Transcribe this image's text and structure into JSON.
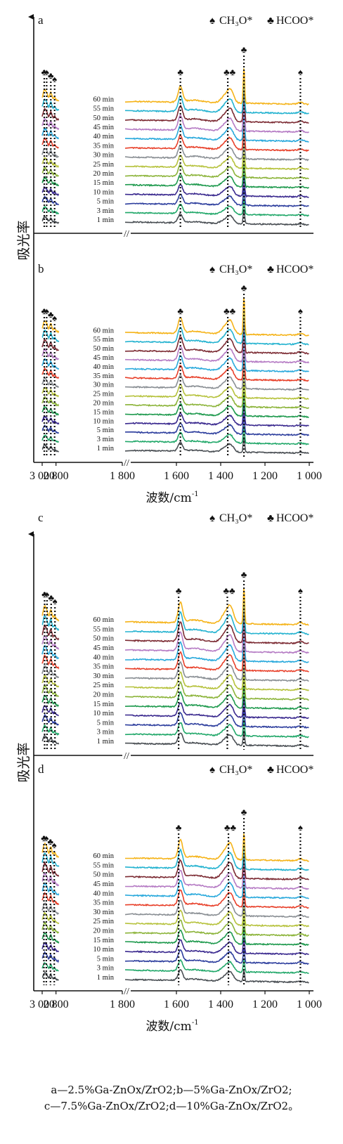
{
  "y_axis_label": "吸光率",
  "x_axis_label": "波数/cm",
  "x_axis_label_sup": "-1",
  "x_axis_break": "//",
  "legend": [
    {
      "symbol": "♠",
      "label": "CH₃O*"
    },
    {
      "symbol": "♣",
      "label": "HCOO*"
    }
  ],
  "chart_data": {
    "type": "line",
    "x_axis": {
      "reversed": true,
      "broken_between": [
        1800,
        2800
      ],
      "left_ticks": [
        {
          "value": 3000,
          "label": "3 000"
        },
        {
          "value": 2800,
          "label": "2 800"
        },
        {
          "value": 1800,
          "label": "1 800"
        }
      ],
      "right_ticks": [
        {
          "value": 1600,
          "label": "1 600"
        },
        {
          "value": 1400,
          "label": "1 400"
        },
        {
          "value": 1200,
          "label": "1 200"
        },
        {
          "value": 1000,
          "label": "1 000"
        }
      ]
    },
    "series": [
      {
        "name": "1 min",
        "color": "#4a4f54"
      },
      {
        "name": "3 min",
        "color": "#22a86a"
      },
      {
        "name": "5 min",
        "color": "#2e3f9e"
      },
      {
        "name": "10 min",
        "color": "#3b2a8f"
      },
      {
        "name": "15 min",
        "color": "#1f9a4e"
      },
      {
        "name": "20 min",
        "color": "#8cb43a"
      },
      {
        "name": "25 min",
        "color": "#b6c23c"
      },
      {
        "name": "30 min",
        "color": "#8a8f94"
      },
      {
        "name": "35 min",
        "color": "#e8402a"
      },
      {
        "name": "40 min",
        "color": "#29a9dc"
      },
      {
        "name": "45 min",
        "color": "#b57bc4"
      },
      {
        "name": "50 min",
        "color": "#7c2b33"
      },
      {
        "name": "55 min",
        "color": "#25b3d0"
      },
      {
        "name": "60 min",
        "color": "#f5b318"
      }
    ],
    "panels": [
      {
        "id": "a",
        "markers": [
          {
            "wavenumber": 2970,
            "symbol": "♣"
          },
          {
            "wavenumber": 2935,
            "symbol": "♠"
          },
          {
            "wavenumber": 2875,
            "symbol": "♣"
          },
          {
            "wavenumber": 2820,
            "symbol": "♠"
          },
          {
            "wavenumber": 1582,
            "symbol": "♣"
          },
          {
            "wavenumber": 1368,
            "symbol": "♣♣"
          },
          {
            "wavenumber": 1295,
            "symbol": "♣"
          },
          {
            "wavenumber": 1040,
            "symbol": "♠"
          }
        ]
      },
      {
        "id": "b",
        "markers": [
          {
            "wavenumber": 2970,
            "symbol": "♣"
          },
          {
            "wavenumber": 2935,
            "symbol": "♠"
          },
          {
            "wavenumber": 2875,
            "symbol": "♣"
          },
          {
            "wavenumber": 2820,
            "symbol": "♠"
          },
          {
            "wavenumber": 1582,
            "symbol": "♣"
          },
          {
            "wavenumber": 1368,
            "symbol": "♣♣"
          },
          {
            "wavenumber": 1295,
            "symbol": "♣"
          },
          {
            "wavenumber": 1040,
            "symbol": "♠"
          }
        ]
      },
      {
        "id": "c",
        "markers": [
          {
            "wavenumber": 2965,
            "symbol": "♣"
          },
          {
            "wavenumber": 2930,
            "symbol": "♠"
          },
          {
            "wavenumber": 2870,
            "symbol": "♣"
          },
          {
            "wavenumber": 2815,
            "symbol": "♠"
          },
          {
            "wavenumber": 1590,
            "symbol": "♣"
          },
          {
            "wavenumber": 1370,
            "symbol": "♣♣"
          },
          {
            "wavenumber": 1295,
            "symbol": "♣"
          },
          {
            "wavenumber": 1040,
            "symbol": "♠"
          }
        ]
      },
      {
        "id": "d",
        "markers": [
          {
            "wavenumber": 2975,
            "symbol": "♣"
          },
          {
            "wavenumber": 2940,
            "symbol": "♠"
          },
          {
            "wavenumber": 2880,
            "symbol": "♣"
          },
          {
            "wavenumber": 2825,
            "symbol": "♠"
          },
          {
            "wavenumber": 1590,
            "symbol": "♣"
          },
          {
            "wavenumber": 1365,
            "symbol": "♣♣"
          },
          {
            "wavenumber": 1295,
            "symbol": "♣"
          },
          {
            "wavenumber": 1040,
            "symbol": "♠"
          }
        ]
      }
    ]
  },
  "caption": {
    "line1": "a—2.5%Ga-ZnOx/ZrO2;b—5%Ga-ZnOx/ZrO2;",
    "line2": "c—7.5%Ga-ZnOx/ZrO2;d—10%Ga-ZnOx/ZrO2。"
  }
}
